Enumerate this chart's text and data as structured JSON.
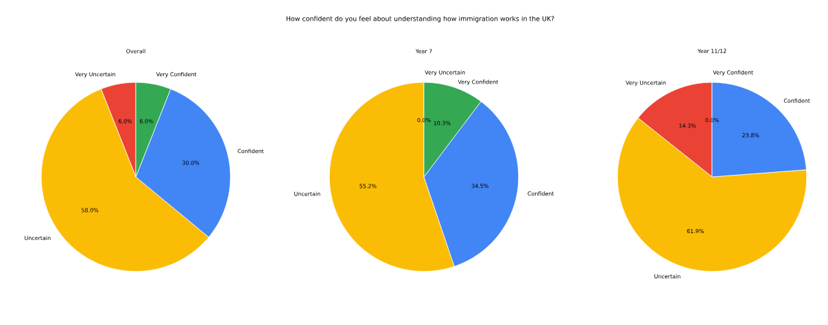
{
  "chart_data": [
    {
      "type": "pie",
      "title": "Overall",
      "annotations": [
        "How confident do you feel about understanding how immigration works in the UK?"
      ],
      "categories": [
        "Very Uncertain",
        "Uncertain",
        "Confident",
        "Very Confident"
      ],
      "values": [
        6.0,
        58.0,
        30.0,
        6.0
      ],
      "value_labels": [
        "6.0%",
        "58.0%",
        "30.0%",
        "6.0%"
      ],
      "colors": [
        "#ea4335",
        "#fbbc05",
        "#4285f4",
        "#34a853"
      ]
    },
    {
      "type": "pie",
      "title": "Year 7",
      "categories": [
        "Very Uncertain",
        "Uncertain",
        "Confident",
        "Very Confident"
      ],
      "values": [
        0.0,
        55.2,
        34.5,
        10.3
      ],
      "value_labels": [
        "0.0%",
        "55.2%",
        "34.5%",
        "10.3%"
      ],
      "colors": [
        "#ea4335",
        "#fbbc05",
        "#4285f4",
        "#34a853"
      ]
    },
    {
      "type": "pie",
      "title": "Year 11/12",
      "categories": [
        "Very Uncertain",
        "Uncertain",
        "Confident",
        "Very Confident"
      ],
      "values": [
        14.3,
        61.9,
        23.8,
        0.0
      ],
      "value_labels": [
        "14.3%",
        "61.9%",
        "23.8%",
        "0.0%"
      ],
      "colors": [
        "#ea4335",
        "#fbbc05",
        "#4285f4",
        "#34a853"
      ]
    }
  ]
}
